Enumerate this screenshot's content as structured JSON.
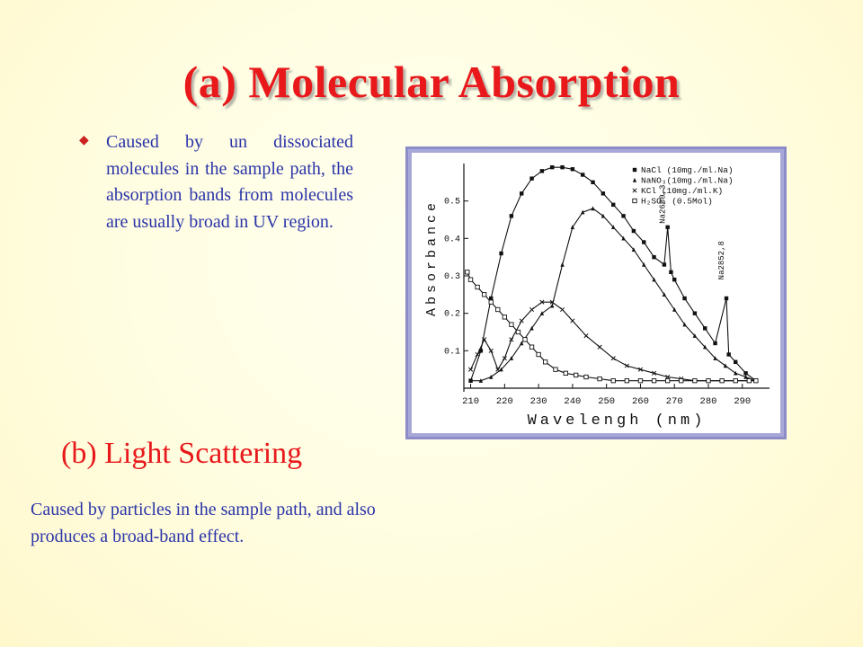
{
  "slide": {
    "title": "(a)  Molecular Absorption",
    "bullet_icon": "diamond-bullet-icon",
    "bullet_text": "Caused by un dissociated molecules in the sample path, the absorption bands from molecules are usually broad in UV region.",
    "subtitle": "(b)  Light Scattering",
    "description": "Caused by particles in the sample path, and also produces a broad-band effect."
  },
  "colors": {
    "title": "#e8181b",
    "body_text": "#2a34a8",
    "chart_frame": "#8c8cc8"
  },
  "chart_data": {
    "type": "line",
    "xlabel": "Wavelengh (nm)",
    "ylabel": "Absorbance",
    "xlim": [
      208,
      298
    ],
    "ylim": [
      0,
      0.6
    ],
    "x_ticks": [
      "210",
      "220",
      "230",
      "240",
      "250",
      "260",
      "270",
      "280",
      "290"
    ],
    "y_ticks": [
      "0.1",
      "0.2",
      "0.3",
      "0.4",
      "0.5"
    ],
    "legend_position": "top-right",
    "legend": [
      "NaCl  (10mg./ml.Na)",
      "NaNO₃(10mg./ml.Na)",
      "KCl   (10mg./ml.K)",
      "H₂SO₄ (0.5Mol)"
    ],
    "annotations": [
      {
        "text": "Na2680,3",
        "x": 268,
        "y": 0.43
      },
      {
        "text": "Na2852,8",
        "x": 285.3,
        "y": 0.28
      }
    ],
    "series": [
      {
        "marker": "square-filled",
        "x": [
          210,
          213,
          216,
          219,
          222,
          225,
          228,
          231,
          234,
          237,
          240,
          243,
          246,
          249,
          252,
          255,
          258,
          261,
          264,
          267,
          268,
          269,
          270,
          273,
          276,
          279,
          282,
          285.3,
          286,
          288,
          291,
          294
        ],
        "y": [
          0.02,
          0.1,
          0.24,
          0.36,
          0.46,
          0.52,
          0.56,
          0.58,
          0.59,
          0.59,
          0.585,
          0.57,
          0.55,
          0.52,
          0.49,
          0.46,
          0.42,
          0.39,
          0.35,
          0.33,
          0.43,
          0.31,
          0.29,
          0.24,
          0.2,
          0.16,
          0.12,
          0.24,
          0.09,
          0.07,
          0.04,
          0.02
        ]
      },
      {
        "marker": "triangle",
        "x": [
          210,
          213,
          216,
          219,
          222,
          225,
          228,
          231,
          234,
          237,
          240,
          243,
          246,
          249,
          252,
          255,
          258,
          261,
          264,
          267,
          270,
          273,
          276,
          279,
          282,
          285,
          288,
          291,
          294
        ],
        "y": [
          0.02,
          0.02,
          0.03,
          0.05,
          0.08,
          0.12,
          0.16,
          0.2,
          0.22,
          0.33,
          0.43,
          0.47,
          0.48,
          0.46,
          0.43,
          0.4,
          0.37,
          0.33,
          0.29,
          0.25,
          0.21,
          0.17,
          0.14,
          0.11,
          0.08,
          0.06,
          0.04,
          0.03,
          0.02
        ]
      },
      {
        "marker": "cross",
        "x": [
          210,
          212,
          214,
          216,
          218,
          220,
          222,
          225,
          228,
          231,
          234,
          237,
          240,
          244,
          248,
          252,
          256,
          260,
          264,
          268,
          272,
          276,
          280,
          284,
          288,
          292,
          294
        ],
        "y": [
          0.05,
          0.09,
          0.13,
          0.1,
          0.05,
          0.08,
          0.13,
          0.18,
          0.21,
          0.23,
          0.23,
          0.21,
          0.18,
          0.14,
          0.11,
          0.08,
          0.06,
          0.05,
          0.04,
          0.03,
          0.025,
          0.02,
          0.02,
          0.02,
          0.02,
          0.02,
          0.02
        ]
      },
      {
        "marker": "square-open",
        "x": [
          209,
          210,
          212,
          214,
          216,
          218,
          220,
          222,
          224,
          226,
          228,
          230,
          232,
          235,
          238,
          241,
          244,
          248,
          252,
          256,
          260,
          264,
          268,
          272,
          276,
          280,
          284,
          288,
          292,
          294
        ],
        "y": [
          0.31,
          0.29,
          0.27,
          0.25,
          0.23,
          0.21,
          0.19,
          0.17,
          0.15,
          0.13,
          0.11,
          0.09,
          0.07,
          0.05,
          0.04,
          0.035,
          0.03,
          0.025,
          0.02,
          0.02,
          0.02,
          0.02,
          0.02,
          0.02,
          0.02,
          0.02,
          0.02,
          0.02,
          0.02,
          0.02
        ]
      }
    ]
  }
}
